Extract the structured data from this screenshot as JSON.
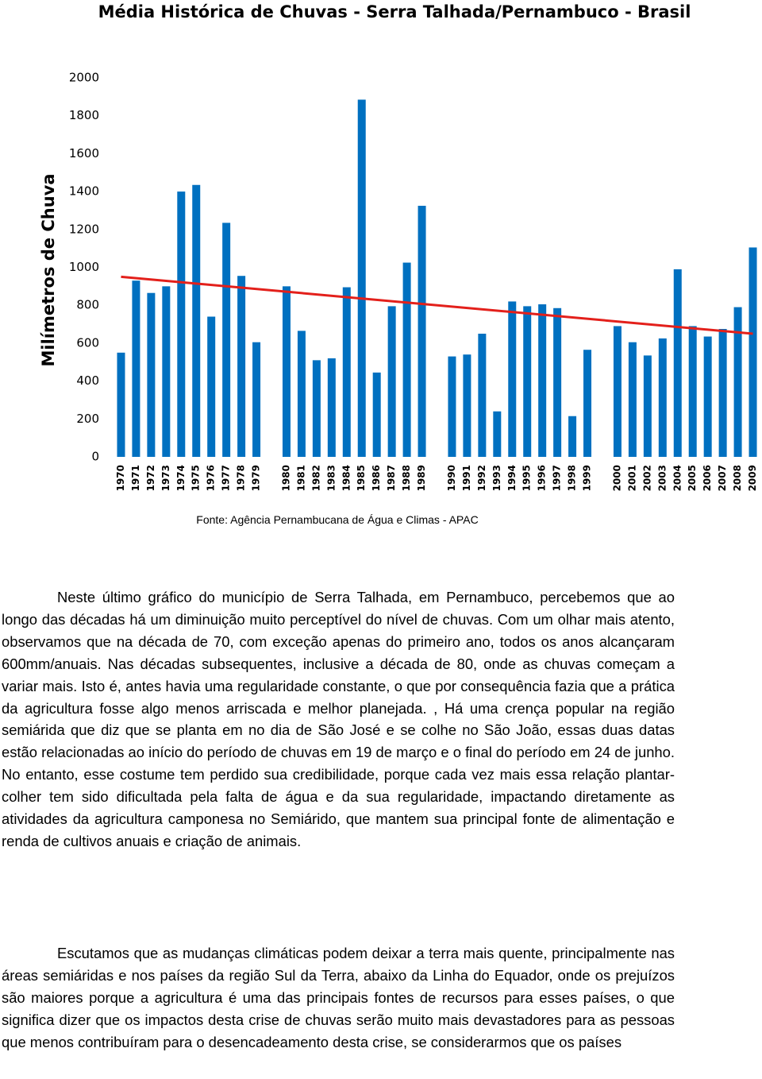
{
  "chart_data": {
    "type": "bar",
    "title": "Média Histórica de Chuvas - Serra Talhada/Pernambuco - Brasil",
    "y_label": "Milímetros de Chuva",
    "categories": [
      "1970",
      "1971",
      "1972",
      "1973",
      "1974",
      "1975",
      "1976",
      "1977",
      "1978",
      "1979",
      null,
      "1980",
      "1981",
      "1982",
      "1983",
      "1984",
      "1985",
      "1986",
      "1987",
      "1988",
      "1989",
      null,
      "1990",
      "1991",
      "1992",
      "1993",
      "1994",
      "1995",
      "1996",
      "1997",
      "1998",
      "1999",
      null,
      "2000",
      "2001",
      "2002",
      "2003",
      "2004",
      "2005",
      "2006",
      "2007",
      "2008",
      "2009"
    ],
    "values": [
      550,
      930,
      865,
      900,
      1400,
      1435,
      740,
      1235,
      955,
      605,
      null,
      900,
      665,
      510,
      520,
      895,
      1885,
      445,
      795,
      1025,
      1325,
      null,
      530,
      540,
      650,
      240,
      820,
      795,
      805,
      785,
      215,
      565,
      null,
      690,
      605,
      535,
      625,
      990,
      690,
      635,
      675,
      790,
      1105
    ],
    "color": "#0070c0",
    "trendline": {
      "color": "#e3201b",
      "start": 950,
      "end": 650
    },
    "ylim": [
      0,
      2000
    ],
    "yticks": [
      0,
      200,
      400,
      600,
      800,
      1000,
      1200,
      1400,
      1600,
      1800,
      2000
    ],
    "grid": false
  },
  "source": "Fonte: Agência Pernambucana de Água e Climas - APAC",
  "paragraphs": [
    "Neste último gráfico do município de Serra Talhada, em Pernambuco, percebemos  que ao longo das décadas há um diminuição muito perceptível do nível de chuvas. Com um olhar mais atento, observamos que na década de 70, com exceção apenas do primeiro ano, todos os anos alcançaram 600mm/anuais. Nas décadas subsequentes, inclusive a década de 80, onde as chuvas começam a variar mais. Isto é, antes havia uma regularidade constante, o que por consequência fazia que a prática da agricultura fosse algo menos arriscada e melhor planejada. , Há uma crença popular na região semiárida que diz que se planta em no dia de São José e se colhe no São João, essas duas datas estão relacionadas ao início do período de chuvas em 19 de março e o final do período em 24 de junho. No entanto, esse costume tem perdido sua credibilidade, porque cada vez mais essa relação plantar-colher tem sido dificultada pela falta de água e da sua regularidade, impactando diretamente as atividades da agricultura camponesa no Semiárido, que mantem sua principal fonte de alimentação e renda de cultivos anuais e criação de animais.",
    "Escutamos que as mudanças climáticas podem deixar a terra mais quente, principalmente nas áreas semiáridas e nos países da região Sul da Terra, abaixo da Linha do Equador, onde os prejuízos são maiores porque a agricultura é uma das principais fontes de recursos para esses países, o que significa dizer que os impactos desta crise de chuvas serão muito mais devastadores para as pessoas que menos contribuíram para o desencadeamento desta crise, se considerarmos que os países"
  ]
}
